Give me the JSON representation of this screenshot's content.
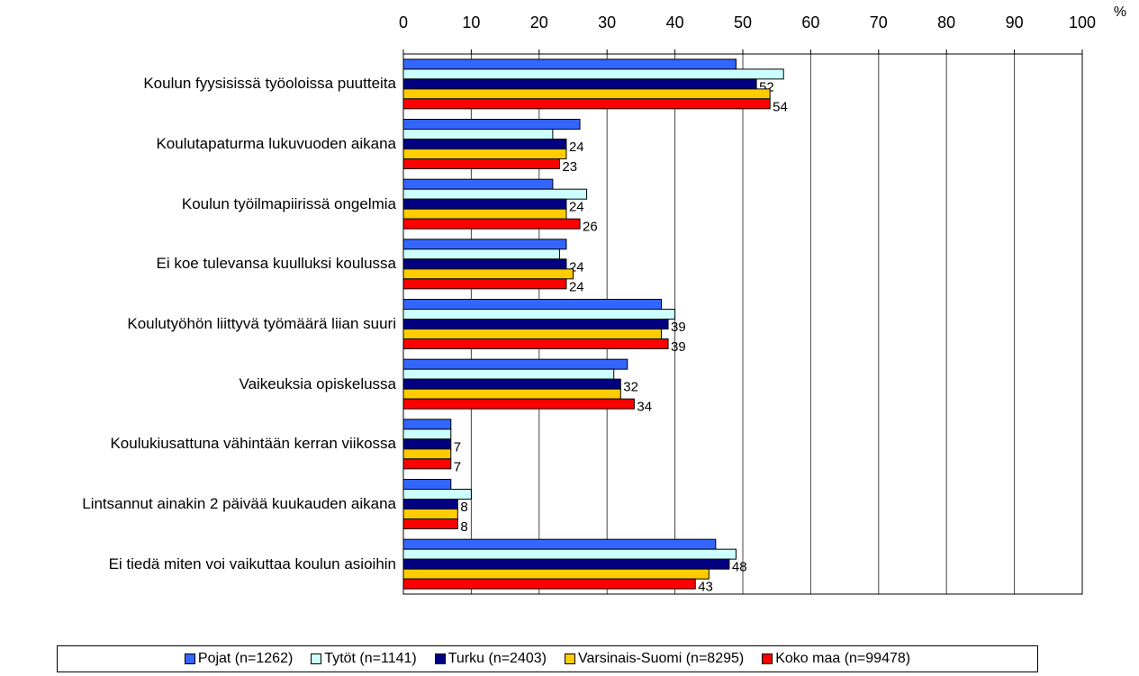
{
  "chart_data": {
    "type": "hbar",
    "x_unit": "%",
    "categories": [
      "Koulun fyysisissä työoloissa puutteita",
      "Koulutapaturma lukuvuoden aikana",
      "Koulun työilmapiirissä ongelmia",
      "Ei koe tulevansa kuulluksi koulussa",
      "Koulutyöhön liittyvä työmäärä liian suuri",
      "Vaikeuksia opiskelussa",
      "Koulukiusattuna vähintään kerran viikossa",
      "Lintsannut ainakin 2 päivää kuukauden aikana",
      "Ei tiedä miten voi vaikuttaa koulun asioihin"
    ],
    "series": [
      {
        "name": "Pojat (n=1262)",
        "color": "#3366ff",
        "show_labels": false,
        "values": [
          49,
          26,
          22,
          24,
          38,
          33,
          7,
          7,
          46
        ]
      },
      {
        "name": "Tytöt (n=1141)",
        "color": "#ccffff",
        "show_labels": false,
        "values": [
          56,
          22,
          27,
          23,
          40,
          31,
          7,
          10,
          49
        ]
      },
      {
        "name": "Turku (n=2403)",
        "color": "#000080",
        "show_labels": true,
        "values": [
          52,
          24,
          24,
          24,
          39,
          32,
          7,
          8,
          48
        ]
      },
      {
        "name": "Varsinais-Suomi (n=8295)",
        "color": "#ffcc00",
        "show_labels": false,
        "values": [
          54,
          24,
          24,
          25,
          38,
          32,
          7,
          8,
          45
        ]
      },
      {
        "name": "Koko maa (n=99478)",
        "color": "#ff0000",
        "show_labels": true,
        "values": [
          54,
          23,
          26,
          24,
          39,
          34,
          7,
          8,
          43
        ]
      }
    ],
    "xlim": [
      0,
      100
    ],
    "xticks": [
      0,
      10,
      20,
      30,
      40,
      50,
      60,
      70,
      80,
      90,
      100
    ],
    "grid": true,
    "legend": "bottom"
  }
}
